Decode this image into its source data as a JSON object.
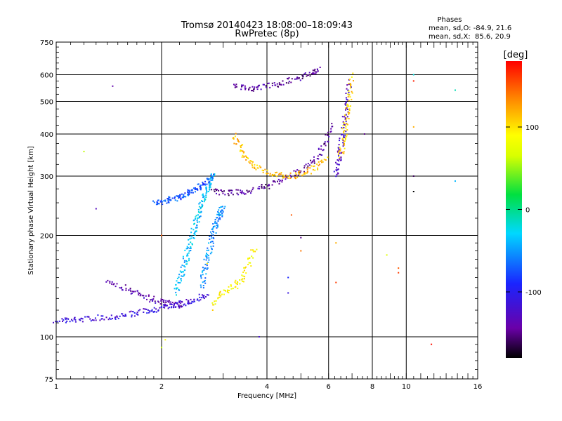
{
  "chart_data": {
    "type": "scatter",
    "title": "Tromsø 20140423 18:08:00–18:09:43",
    "subtitle": "RwPretec (8p)",
    "xlabel": "Frequency [MHz]",
    "ylabel": "Stationary phase Virtual Height [km]",
    "x_scale": "log",
    "y_scale": "log",
    "xlim": [
      1,
      16
    ],
    "ylim": [
      75,
      750
    ],
    "x_ticks": [
      1,
      2,
      4,
      6,
      8,
      10,
      16
    ],
    "y_ticks": [
      75,
      100,
      200,
      300,
      400,
      500,
      600,
      750
    ],
    "grid": true,
    "phase_stats": {
      "title": "Phases",
      "o_line": "mean, sd,O: -84.9, 21.6",
      "x_line": "mean, sd,X:  85.6, 20.9"
    },
    "colorbar": {
      "label": "[deg]",
      "range": [
        -180,
        180
      ],
      "ticks": [
        100,
        0,
        -100
      ],
      "tick_labels": [
        "100",
        "0",
        "-100"
      ]
    },
    "traces": [
      {
        "x": [
          1.0,
          1.1,
          1.2,
          1.35,
          1.5,
          1.65,
          1.8,
          1.95,
          2.1,
          2.25,
          2.4,
          2.55,
          2.7
        ],
        "y": [
          112,
          112,
          113,
          114,
          115,
          117,
          119,
          121,
          123,
          125,
          127,
          130,
          134
        ],
        "phase": -115
      },
      {
        "x": [
          1.4,
          1.55,
          1.7,
          1.85,
          2.0,
          2.15,
          2.3
        ],
        "y": [
          145,
          140,
          135,
          130,
          127,
          125,
          124
        ],
        "phase": -135
      },
      {
        "x": [
          2.2,
          2.25,
          2.3,
          2.35,
          2.4,
          2.45,
          2.5,
          2.55,
          2.6,
          2.65,
          2.7,
          2.75,
          2.8
        ],
        "y": [
          135,
          145,
          158,
          170,
          185,
          200,
          215,
          230,
          245,
          260,
          275,
          290,
          305
        ],
        "phase": -35
      },
      {
        "x": [
          2.6,
          2.65,
          2.7,
          2.75,
          2.8,
          2.85,
          2.9,
          2.95,
          3.0
        ],
        "y": [
          140,
          155,
          170,
          185,
          200,
          215,
          225,
          235,
          245
        ],
        "phase": -55
      },
      {
        "x": [
          1.9,
          2.0,
          2.1,
          2.2,
          2.3,
          2.4,
          2.5,
          2.6,
          2.7,
          2.8
        ],
        "y": [
          250,
          252,
          255,
          258,
          262,
          268,
          275,
          282,
          290,
          300
        ],
        "phase": -75
      },
      {
        "x": [
          2.8,
          3.0,
          3.3,
          3.6,
          4.0,
          4.4,
          4.8,
          5.2,
          5.6,
          5.9,
          6.1
        ],
        "y": [
          270,
          268,
          268,
          272,
          280,
          290,
          303,
          320,
          345,
          380,
          430
        ],
        "phase": -145
      },
      {
        "x": [
          3.2,
          3.35,
          3.5,
          3.7,
          4.0,
          4.3,
          4.7,
          5.1,
          5.5,
          5.9
        ],
        "y": [
          400,
          365,
          340,
          320,
          308,
          302,
          300,
          305,
          318,
          340
        ],
        "phase": 115
      },
      {
        "x": [
          2.8,
          3.0,
          3.2,
          3.4,
          3.55,
          3.7
        ],
        "y": [
          125,
          135,
          140,
          148,
          165,
          185
        ],
        "phase": 90
      },
      {
        "x": [
          6.3,
          6.4,
          6.5,
          6.6,
          6.7,
          6.8,
          6.9
        ],
        "y": [
          300,
          330,
          360,
          400,
          450,
          510,
          580
        ],
        "phase": -125
      },
      {
        "x": [
          6.5,
          6.6,
          6.7,
          6.8,
          6.9,
          7.0
        ],
        "y": [
          340,
          380,
          420,
          470,
          530,
          600
        ],
        "phase": 105
      },
      {
        "x": [
          3.2,
          3.5,
          3.8,
          4.2,
          4.6,
          5.0,
          5.4,
          5.7
        ],
        "y": [
          560,
          545,
          548,
          560,
          575,
          590,
          605,
          630
        ],
        "phase": -145
      }
    ],
    "isolated_points": [
      {
        "x": 1.45,
        "y": 555,
        "phase": -140
      },
      {
        "x": 1.3,
        "y": 240,
        "phase": -130
      },
      {
        "x": 1.2,
        "y": 355,
        "phase": 60
      },
      {
        "x": 10.5,
        "y": 270,
        "phase": -180
      },
      {
        "x": 10.5,
        "y": 300,
        "phase": -160
      },
      {
        "x": 10.5,
        "y": 420,
        "phase": 120
      },
      {
        "x": 10.5,
        "y": 600,
        "phase": -20
      },
      {
        "x": 10.5,
        "y": 575,
        "phase": 170
      },
      {
        "x": 13.8,
        "y": 540,
        "phase": -10
      },
      {
        "x": 13.8,
        "y": 290,
        "phase": -40
      },
      {
        "x": 11.8,
        "y": 95,
        "phase": 175
      },
      {
        "x": 9.5,
        "y": 160,
        "phase": 150
      },
      {
        "x": 9.5,
        "y": 155,
        "phase": 160
      },
      {
        "x": 8.8,
        "y": 175,
        "phase": 70
      },
      {
        "x": 6.3,
        "y": 145,
        "phase": 160
      },
      {
        "x": 6.3,
        "y": 190,
        "phase": 120
      },
      {
        "x": 5.0,
        "y": 180,
        "phase": 140
      },
      {
        "x": 5.0,
        "y": 197,
        "phase": -150
      },
      {
        "x": 4.6,
        "y": 135,
        "phase": -110
      },
      {
        "x": 4.6,
        "y": 150,
        "phase": -90
      },
      {
        "x": 3.8,
        "y": 100,
        "phase": -120
      },
      {
        "x": 2.0,
        "y": 93,
        "phase": 60
      },
      {
        "x": 2.05,
        "y": 98,
        "phase": 90
      },
      {
        "x": 2.0,
        "y": 200,
        "phase": 150
      },
      {
        "x": 2.8,
        "y": 120,
        "phase": 110
      },
      {
        "x": 2.7,
        "y": 165,
        "phase": 100
      },
      {
        "x": 7.6,
        "y": 400,
        "phase": -150
      },
      {
        "x": 4.7,
        "y": 230,
        "phase": 150
      }
    ]
  }
}
